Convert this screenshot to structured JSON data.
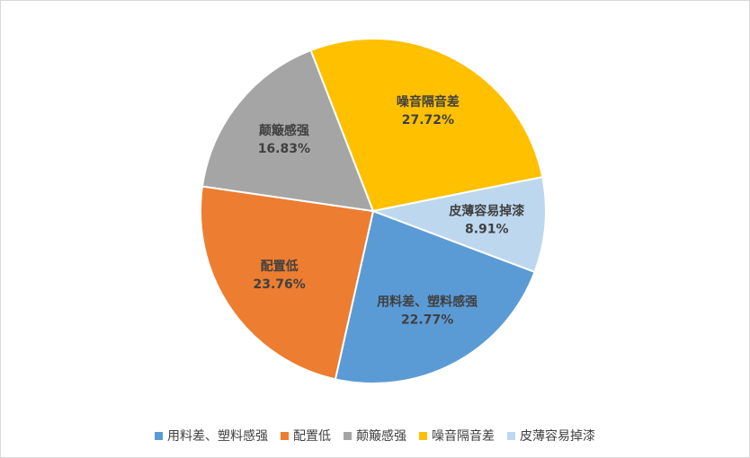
{
  "chart_data": {
    "type": "pie",
    "categories": [
      "用料差、塑料感强",
      "配置低",
      "颠簸感强",
      "噪音隔音差",
      "皮薄容易掉漆"
    ],
    "values": [
      22.77,
      23.76,
      16.83,
      27.72,
      8.91
    ],
    "value_labels": [
      "22.77%",
      "23.76%",
      "16.83%",
      "27.72%",
      "8.91%"
    ],
    "colors": [
      "#5b9bd5",
      "#ed7d31",
      "#a5a5a5",
      "#ffc000",
      "#bdd7ee"
    ],
    "legend": "bottom"
  }
}
